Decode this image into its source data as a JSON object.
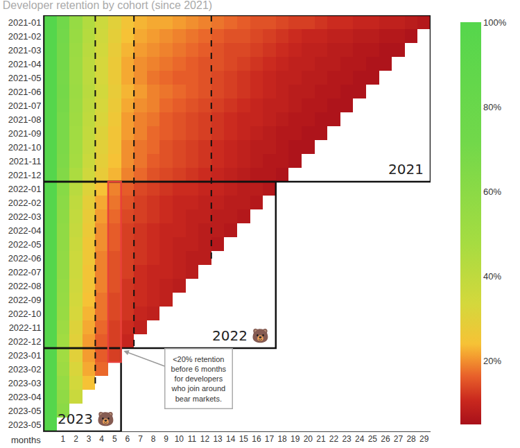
{
  "chart_data": {
    "type": "heatmap",
    "title": "Developer retention by cohort (since 2021)",
    "x_label": "months",
    "categories": [
      "2021-01",
      "2021-02",
      "2021-03",
      "2021-04",
      "2021-05",
      "2021-06",
      "2021-07",
      "2021-08",
      "2021-09",
      "2021-10",
      "2021-11",
      "2021-12",
      "2022-01",
      "2022-02",
      "2022-03",
      "2022-04",
      "2022-05",
      "2022-06",
      "2022-07",
      "2022-08",
      "2022-09",
      "2022-10",
      "2022-11",
      "2022-12",
      "2023-01",
      "2023-02",
      "2023-03",
      "2023-04",
      "2023-05",
      "2023-05"
    ],
    "x": [
      0,
      1,
      2,
      3,
      4,
      5,
      6,
      7,
      8,
      9,
      10,
      11,
      12,
      13,
      14,
      15,
      16,
      17,
      18,
      19,
      20,
      21,
      22,
      23,
      24,
      25,
      26,
      27,
      28,
      29
    ],
    "xlim": [
      -0.5,
      29.5
    ],
    "xticks": [
      1,
      2,
      3,
      4,
      5,
      6,
      7,
      8,
      9,
      10,
      11,
      12,
      13,
      14,
      15,
      16,
      17,
      18,
      19,
      20,
      21,
      22,
      23,
      24,
      25,
      26,
      27,
      28,
      29
    ],
    "cells": [
      [
        100,
        72,
        55,
        44,
        36,
        30,
        25,
        23,
        22,
        22,
        21,
        20,
        19,
        18,
        17,
        16,
        15,
        15,
        14,
        13,
        13,
        12,
        11,
        11,
        10,
        10,
        9,
        9,
        8,
        7
      ],
      [
        100,
        71,
        54,
        43,
        35,
        29,
        24,
        22,
        21,
        20,
        19,
        18,
        17,
        16,
        15,
        15,
        14,
        13,
        12,
        11,
        10,
        10,
        9,
        9,
        8,
        8,
        7,
        7,
        6
      ],
      [
        100,
        70,
        53,
        42,
        34,
        28,
        23,
        21,
        20,
        19,
        18,
        17,
        16,
        15,
        14,
        14,
        13,
        12,
        11,
        10,
        9,
        9,
        8,
        8,
        7,
        7,
        6,
        6
      ],
      [
        100,
        70,
        52,
        41,
        33,
        27,
        22,
        20,
        19,
        18,
        17,
        16,
        15,
        15,
        14,
        13,
        12,
        11,
        10,
        9,
        9,
        8,
        8,
        7,
        7,
        6,
        6
      ],
      [
        100,
        69,
        52,
        41,
        33,
        27,
        22,
        20,
        18,
        17,
        16,
        16,
        15,
        14,
        13,
        12,
        11,
        10,
        9,
        9,
        8,
        8,
        7,
        7,
        6,
        6
      ],
      [
        100,
        70,
        53,
        42,
        34,
        28,
        23,
        21,
        19,
        18,
        17,
        16,
        15,
        14,
        13,
        12,
        11,
        10,
        9,
        8,
        8,
        7,
        7,
        6,
        6
      ],
      [
        100,
        69,
        52,
        41,
        33,
        27,
        22,
        20,
        19,
        17,
        16,
        15,
        14,
        13,
        12,
        11,
        10,
        9,
        9,
        8,
        7,
        7,
        6,
        6
      ],
      [
        100,
        68,
        51,
        40,
        32,
        26,
        21,
        19,
        18,
        16,
        15,
        14,
        13,
        12,
        11,
        10,
        10,
        9,
        8,
        7,
        7,
        6,
        6
      ],
      [
        100,
        68,
        50,
        39,
        31,
        25,
        21,
        19,
        17,
        16,
        15,
        14,
        13,
        12,
        11,
        10,
        9,
        8,
        7,
        7,
        6,
        6
      ],
      [
        100,
        67,
        49,
        38,
        30,
        25,
        20,
        18,
        17,
        15,
        14,
        13,
        12,
        11,
        10,
        9,
        8,
        8,
        7,
        6,
        6
      ],
      [
        100,
        66,
        48,
        37,
        29,
        24,
        20,
        18,
        16,
        15,
        14,
        13,
        12,
        11,
        10,
        9,
        8,
        7,
        7,
        6
      ],
      [
        100,
        64,
        46,
        35,
        28,
        23,
        19,
        17,
        15,
        14,
        13,
        12,
        11,
        10,
        9,
        8,
        7,
        7,
        6
      ],
      [
        100,
        62,
        42,
        31,
        24,
        19,
        16,
        14,
        13,
        12,
        11,
        11,
        10,
        10,
        9,
        8,
        8,
        7
      ],
      [
        100,
        60,
        40,
        29,
        22,
        18,
        15,
        13,
        12,
        11,
        10,
        10,
        9,
        9,
        8,
        8,
        7
      ],
      [
        100,
        59,
        39,
        28,
        21,
        17,
        14,
        13,
        12,
        11,
        10,
        9,
        9,
        8,
        8,
        7
      ],
      [
        100,
        58,
        38,
        27,
        20,
        16,
        13,
        12,
        11,
        10,
        10,
        9,
        8,
        8,
        7
      ],
      [
        100,
        58,
        37,
        26,
        20,
        16,
        13,
        12,
        11,
        10,
        9,
        9,
        8,
        7
      ],
      [
        100,
        57,
        36,
        26,
        19,
        15,
        13,
        12,
        11,
        10,
        9,
        8,
        8
      ],
      [
        100,
        57,
        36,
        25,
        19,
        15,
        13,
        11,
        10,
        10,
        9,
        8
      ],
      [
        100,
        56,
        35,
        25,
        19,
        15,
        12,
        11,
        10,
        9,
        8
      ],
      [
        100,
        55,
        34,
        24,
        18,
        14,
        12,
        11,
        10,
        9
      ],
      [
        100,
        54,
        33,
        23,
        18,
        14,
        12,
        10,
        9
      ],
      [
        100,
        52,
        31,
        22,
        17,
        13,
        11,
        9
      ],
      [
        100,
        50,
        30,
        21,
        16,
        13,
        10
      ],
      [
        100,
        50,
        30,
        21,
        16,
        13
      ],
      [
        100,
        52,
        32,
        22,
        17
      ],
      [
        100,
        55,
        34,
        24
      ],
      [
        100,
        58,
        37
      ],
      [
        100,
        60
      ],
      [
        100
      ]
    ],
    "zlim": [
      5,
      100
    ],
    "zticks": [
      {
        "value": 20,
        "label": "20%"
      },
      {
        "value": 40,
        "label": "40%"
      },
      {
        "value": 60,
        "label": "60%"
      },
      {
        "value": 80,
        "label": "80%"
      },
      {
        "value": 100,
        "label": "100%"
      }
    ],
    "groups": [
      {
        "label": "2021",
        "from": "2021-01",
        "to": "2021-12"
      },
      {
        "label": "2022 🐻",
        "from": "2022-01",
        "to": "2022-12"
      },
      {
        "label": "2023 🐻",
        "from": "2023-01",
        "to": "2023-05"
      }
    ],
    "reference_lines": [
      3.5,
      6.5,
      12.5
    ],
    "highlight": {
      "month": 5,
      "from": "2022-01",
      "to": "2023-01"
    },
    "callout": {
      "lines": [
        "<20% retention",
        "before 6 months",
        "for developers",
        "who join around",
        "bear markets."
      ]
    }
  }
}
